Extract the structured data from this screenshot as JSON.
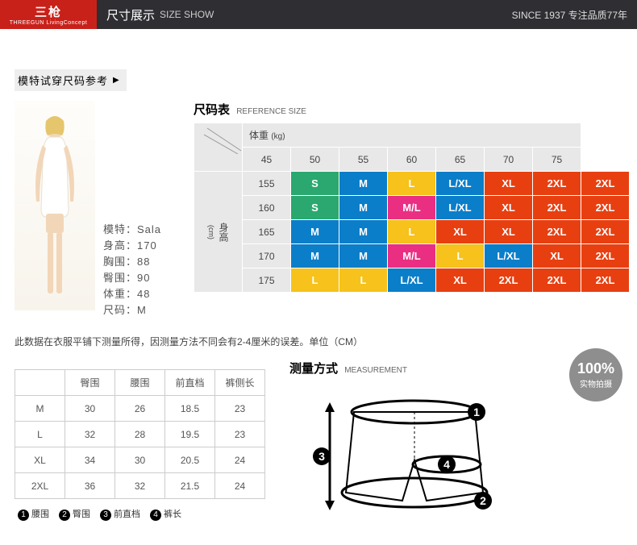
{
  "header": {
    "logo_top": "三枪",
    "logo_top_symbol": "⛄",
    "logo_bottom": "THREEGUN LivingConcept",
    "title": "尺寸展示",
    "title_en": "SIZE SHOW",
    "right": "SINCE  1937  专注品质77年"
  },
  "section_heading": "模特试穿尺码参考",
  "model_info": {
    "name_label": "模特：",
    "name": "Sala",
    "height_label": "身高：",
    "height": "170",
    "bust_label": "胸围：",
    "bust": "88",
    "hip_label": "臀围：",
    "hip": "90",
    "weight_label": "体重：",
    "weight": "48",
    "size_label": "尺码：",
    "size": "M"
  },
  "size_table": {
    "title": "尺码表",
    "title_en": "REFERENCE SIZE",
    "weight_label": "体重",
    "weight_unit": "(kg)",
    "height_label": "身高",
    "height_unit": "(cm)",
    "weights": [
      "45",
      "50",
      "55",
      "60",
      "65",
      "70",
      "75"
    ],
    "heights": [
      "155",
      "160",
      "165",
      "170",
      "175"
    ],
    "cells": [
      [
        {
          "t": "S",
          "c": "#2aa86f"
        },
        {
          "t": "M",
          "c": "#0b7ec9"
        },
        {
          "t": "L",
          "c": "#f6c21b"
        },
        {
          "t": "L/XL",
          "c": "#0b7ec9"
        },
        {
          "t": "XL",
          "c": "#e83f11"
        },
        {
          "t": "2XL",
          "c": "#e83f11"
        },
        {
          "t": "2XL",
          "c": "#e83f11"
        }
      ],
      [
        {
          "t": "S",
          "c": "#2aa86f"
        },
        {
          "t": "M",
          "c": "#0b7ec9"
        },
        {
          "t": "M/L",
          "c": "#ea2e82"
        },
        {
          "t": "L/XL",
          "c": "#0b7ec9"
        },
        {
          "t": "XL",
          "c": "#e83f11"
        },
        {
          "t": "2XL",
          "c": "#e83f11"
        },
        {
          "t": "2XL",
          "c": "#e83f11"
        }
      ],
      [
        {
          "t": "M",
          "c": "#0b7ec9"
        },
        {
          "t": "M",
          "c": "#0b7ec9"
        },
        {
          "t": "L",
          "c": "#f6c21b"
        },
        {
          "t": "XL",
          "c": "#e83f11"
        },
        {
          "t": "XL",
          "c": "#e83f11"
        },
        {
          "t": "2XL",
          "c": "#e83f11"
        },
        {
          "t": "2XL",
          "c": "#e83f11"
        }
      ],
      [
        {
          "t": "M",
          "c": "#0b7ec9"
        },
        {
          "t": "M",
          "c": "#0b7ec9"
        },
        {
          "t": "M/L",
          "c": "#ea2e82"
        },
        {
          "t": "L",
          "c": "#f6c21b"
        },
        {
          "t": "L/XL",
          "c": "#0b7ec9"
        },
        {
          "t": "XL",
          "c": "#e83f11"
        },
        {
          "t": "2XL",
          "c": "#e83f11"
        }
      ],
      [
        {
          "t": "L",
          "c": "#f6c21b"
        },
        {
          "t": "L",
          "c": "#f6c21b"
        },
        {
          "t": "L/XL",
          "c": "#0b7ec9"
        },
        {
          "t": "XL",
          "c": "#e83f11"
        },
        {
          "t": "2XL",
          "c": "#e83f11"
        },
        {
          "t": "2XL",
          "c": "#e83f11"
        },
        {
          "t": "2XL",
          "c": "#e83f11"
        }
      ]
    ]
  },
  "note": "此数据在衣服平铺下测量所得，因测量方法不同会有2-4厘米的误差。单位（CM）",
  "measurement_table": {
    "columns": [
      "",
      "臀围",
      "腰围",
      "前直档",
      "裤侧长"
    ],
    "rows": [
      [
        "M",
        "30",
        "26",
        "18.5",
        "23"
      ],
      [
        "L",
        "32",
        "28",
        "19.5",
        "23"
      ],
      [
        "XL",
        "34",
        "30",
        "20.5",
        "24"
      ],
      [
        "2XL",
        "36",
        "32",
        "21.5",
        "24"
      ]
    ],
    "legend": [
      "腰围",
      "臀围",
      "前直档",
      "裤长"
    ]
  },
  "measure_heading": "测量方式",
  "measure_heading_en": "MEASUREMENT",
  "badge": {
    "big": "100%",
    "small": "实物拍摄"
  },
  "diagram_labels": [
    "1",
    "2",
    "3",
    "4"
  ]
}
